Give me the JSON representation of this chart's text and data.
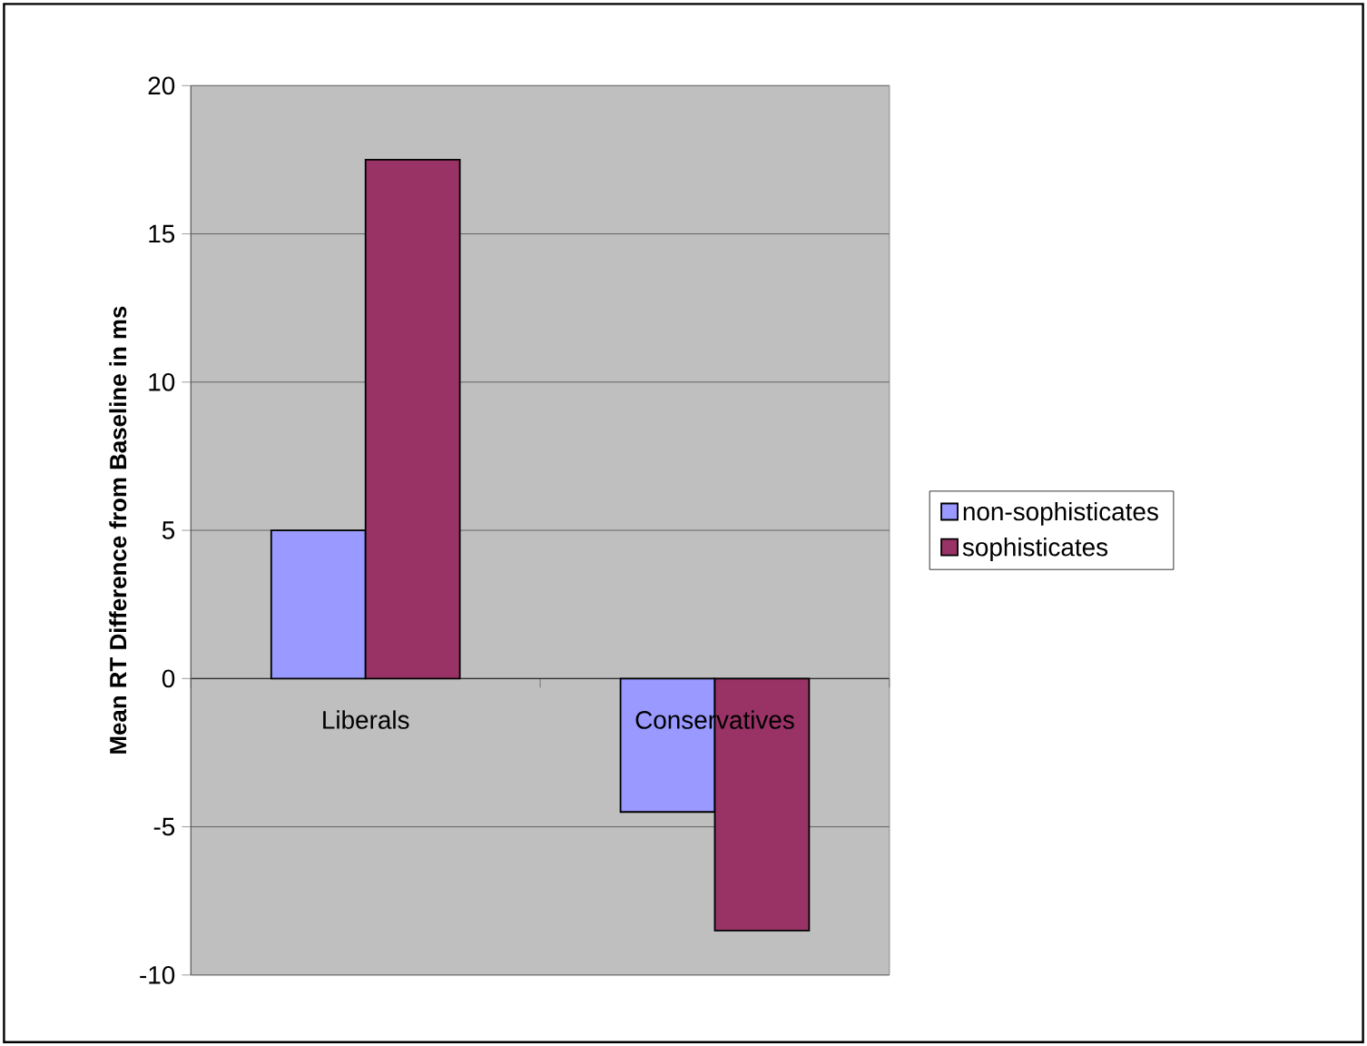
{
  "chart_data": {
    "type": "bar",
    "ylabel": "Mean RT Difference from Baseline in ms",
    "categories": [
      "Liberals",
      "Conservatives"
    ],
    "series": [
      {
        "name": "non-sophisticates",
        "color": "#9999ff",
        "values": [
          5,
          -4.5
        ]
      },
      {
        "name": "sophisticates",
        "color": "#993366",
        "values": [
          17.5,
          -8.5
        ]
      }
    ],
    "ylim": [
      -10,
      20
    ],
    "yticks": [
      -10,
      -5,
      0,
      5,
      10,
      15,
      20
    ],
    "grid": "y",
    "legend": "right"
  }
}
